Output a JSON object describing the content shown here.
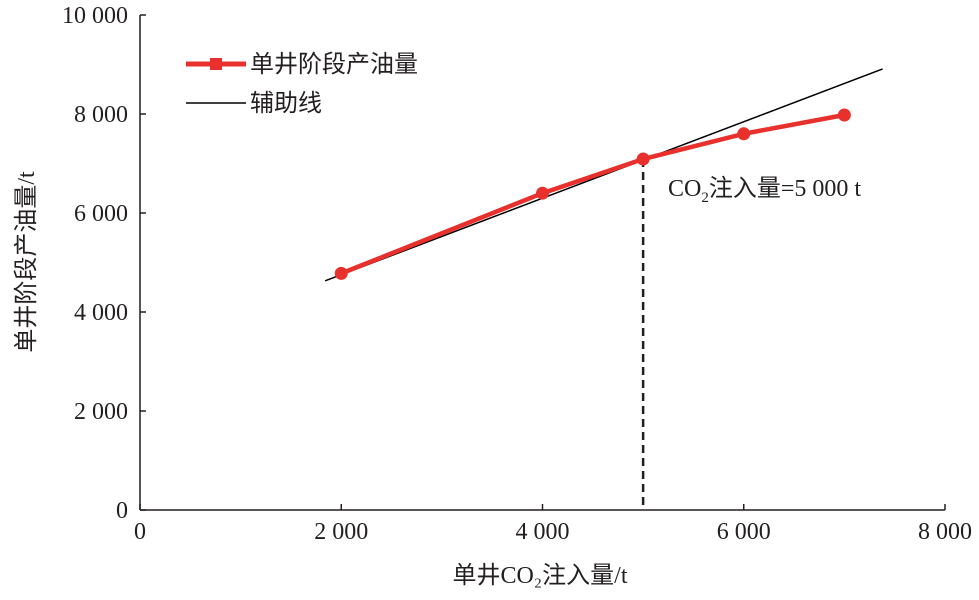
{
  "chart_data": {
    "type": "line",
    "title": "",
    "xlabel": "单井CO₂注入量/t",
    "ylabel": "单井阶段产油量/t",
    "xlim": [
      0,
      8000
    ],
    "ylim": [
      0,
      10000
    ],
    "x_ticks": [
      0,
      2000,
      4000,
      6000,
      8000
    ],
    "x_tick_labels": [
      "0",
      "2 000",
      "4 000",
      "6 000",
      "8 000"
    ],
    "y_ticks": [
      0,
      2000,
      4000,
      6000,
      8000,
      10000
    ],
    "y_tick_labels": [
      "0",
      "2 000",
      "4 000",
      "6 000",
      "8 000",
      "10 000"
    ],
    "grid": false,
    "legend_placement": "top-left",
    "series": [
      {
        "name": "单井阶段产油量",
        "color": "#e8302c",
        "x": [
          2000,
          4000,
          5000,
          6000,
          7000
        ],
        "y": [
          4780,
          6400,
          7090,
          7600,
          7980
        ]
      },
      {
        "name": "辅助线",
        "color": "#000000",
        "x": [
          1840,
          7380
        ],
        "y": [
          4630,
          8910
        ]
      }
    ],
    "reference_line": {
      "x": 5000,
      "y_top": 7090,
      "style": "dashed"
    },
    "annotation": {
      "prefix": "CO",
      "sub": "2",
      "suffix": "注入量=5 000 t"
    }
  }
}
